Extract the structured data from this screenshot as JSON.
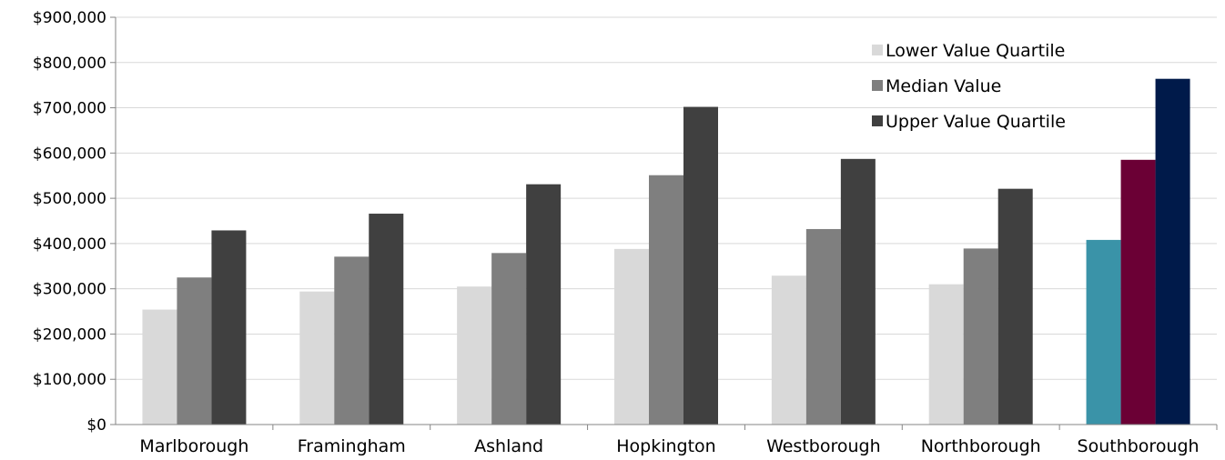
{
  "chart_data": {
    "type": "bar",
    "title": "",
    "xlabel": "",
    "ylabel": "",
    "ylim": [
      0,
      900000
    ],
    "y_ticks": [
      0,
      100000,
      200000,
      300000,
      400000,
      500000,
      600000,
      700000,
      800000,
      900000
    ],
    "y_tick_labels": [
      "$0",
      "$100,000",
      "$200,000",
      "$300,000",
      "$400,000",
      "$500,000",
      "$600,000",
      "$700,000",
      "$800,000",
      "$900,000"
    ],
    "grid": true,
    "legend_position": "top-right",
    "categories": [
      "Marlborough",
      "Framingham",
      "Ashland",
      "Hopkington",
      "Westborough",
      "Northborough",
      "Southborough"
    ],
    "series": [
      {
        "name": "Lower Value Quartile",
        "color": "#d9d9d9",
        "values": [
          254000,
          294000,
          305000,
          388000,
          329000,
          310000,
          408000
        ]
      },
      {
        "name": "Median Value",
        "color": "#7f7f7f",
        "values": [
          325000,
          371000,
          379000,
          551000,
          432000,
          389000,
          585000
        ]
      },
      {
        "name": "Upper Value Quartile",
        "color": "#404040",
        "values": [
          429000,
          466000,
          531000,
          702000,
          587000,
          521000,
          764000
        ]
      }
    ],
    "highlight": {
      "category": "Southborough",
      "colors": [
        "#3a93a8",
        "#6b0035",
        "#001a4a"
      ]
    }
  }
}
